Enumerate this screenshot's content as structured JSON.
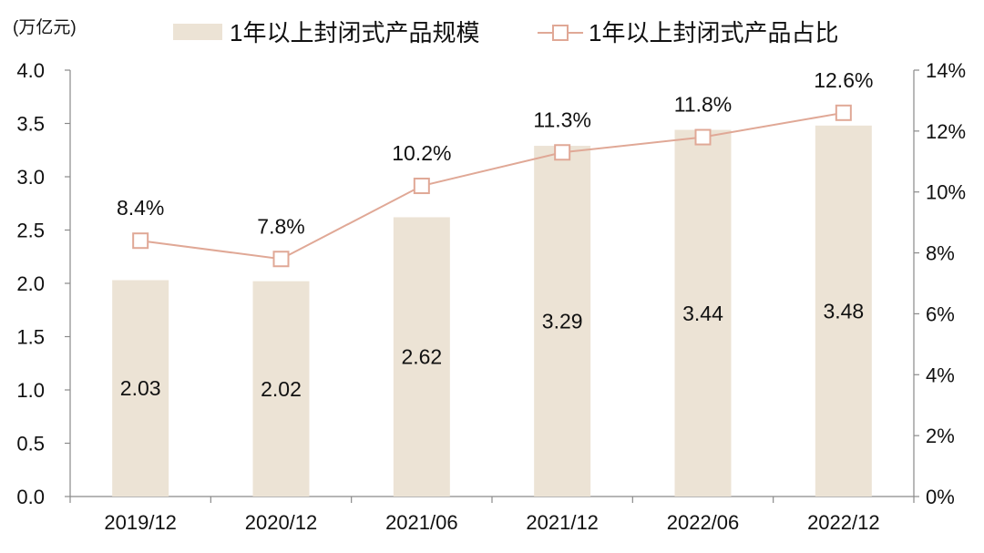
{
  "chart_data": {
    "type": "bar",
    "unit_label": "(万亿元)",
    "categories": [
      "2019/12",
      "2020/12",
      "2021/06",
      "2021/12",
      "2022/06",
      "2022/12"
    ],
    "series": [
      {
        "name": "1年以上封闭式产品规模",
        "type": "bar",
        "axis": "left",
        "color": "#ece3d5",
        "values": [
          2.03,
          2.02,
          2.62,
          3.29,
          3.44,
          3.48
        ],
        "labels": [
          "2.03",
          "2.02",
          "2.62",
          "3.29",
          "3.44",
          "3.48"
        ]
      },
      {
        "name": "1年以上封闭式产品占比",
        "type": "line",
        "axis": "right",
        "color": "#e0a896",
        "values": [
          8.4,
          7.8,
          10.2,
          11.3,
          11.8,
          12.6
        ],
        "labels": [
          "8.4%",
          "7.8%",
          "10.2%",
          "11.3%",
          "11.8%",
          "12.6%"
        ]
      }
    ],
    "y_left": {
      "ylim": [
        0,
        4.0
      ],
      "ticks": [
        "0.0",
        "0.5",
        "1.0",
        "1.5",
        "2.0",
        "2.5",
        "3.0",
        "3.5",
        "4.0"
      ]
    },
    "y_right": {
      "ylim": [
        0,
        14
      ],
      "ticks": [
        "0%",
        "2%",
        "4%",
        "6%",
        "8%",
        "10%",
        "12%",
        "14%"
      ]
    },
    "legend_position": "top",
    "grid": false
  }
}
